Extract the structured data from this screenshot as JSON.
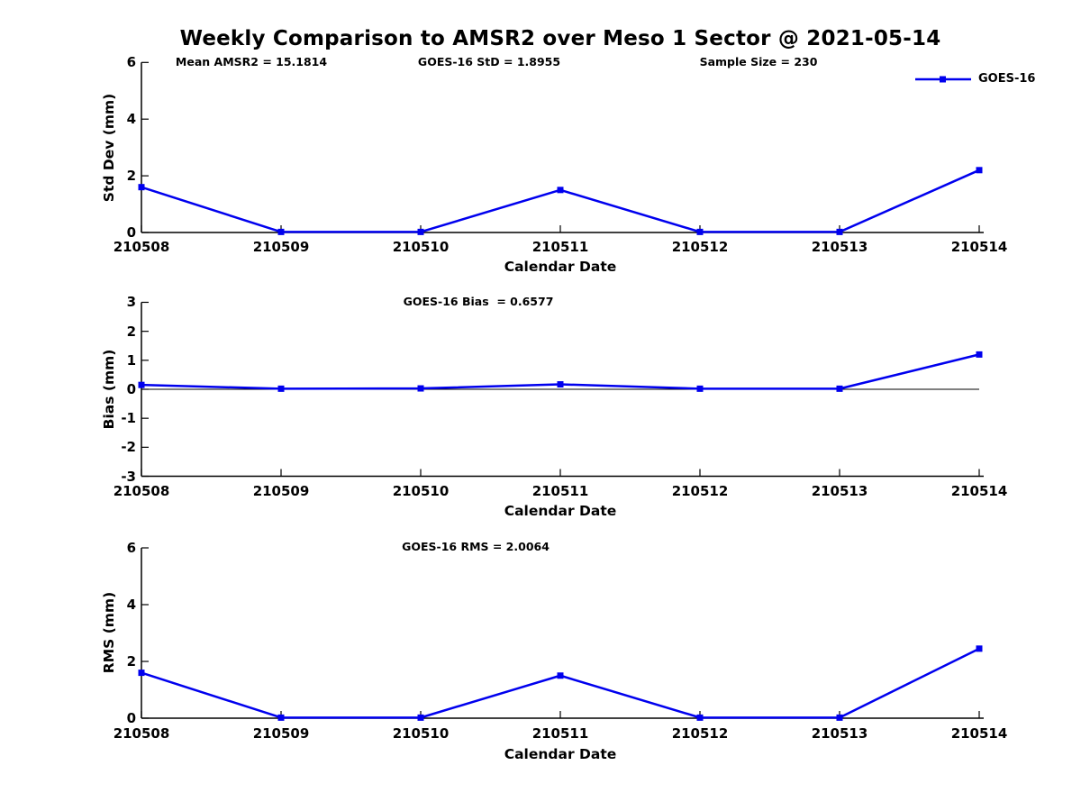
{
  "title": "Weekly Comparison to AMSR2 over Meso 1 Sector @ 2021-05-14",
  "legend": {
    "label": "GOES-16"
  },
  "colors": {
    "series": "#0000EE",
    "axis": "#000000",
    "text": "#000000",
    "background": "#ffffff"
  },
  "chart_data": [
    {
      "type": "line",
      "title": "Weekly Comparison to AMSR2 over Meso 1 Sector @ 2021-05-14",
      "annotations": [
        "Mean AMSR2 = 15.1814",
        "GOES-16 StD = 1.8955",
        "Sample Size = 230"
      ],
      "categories": [
        "210508",
        "210509",
        "210510",
        "210511",
        "210512",
        "210513",
        "210514"
      ],
      "series": [
        {
          "name": "GOES-16",
          "values": [
            1.6,
            0.02,
            0.02,
            1.5,
            0.02,
            0.02,
            2.2
          ]
        }
      ],
      "xlabel": "Calendar Date",
      "ylabel": "Std Dev (mm)",
      "ylim": [
        0,
        6
      ],
      "yticks": [
        0,
        2,
        4,
        6
      ],
      "grid": false,
      "zero_line": false,
      "legend_position": "top-right",
      "marker": "square"
    },
    {
      "type": "line",
      "annotations": [
        "GOES-16 Bias  = 0.6577"
      ],
      "categories": [
        "210508",
        "210509",
        "210510",
        "210511",
        "210512",
        "210513",
        "210514"
      ],
      "series": [
        {
          "name": "GOES-16",
          "values": [
            0.15,
            0.02,
            0.03,
            0.17,
            0.02,
            0.02,
            1.2
          ]
        }
      ],
      "xlabel": "Calendar Date",
      "ylabel": "Bias (mm)",
      "ylim": [
        -3,
        3
      ],
      "yticks": [
        -3,
        -2,
        -1,
        0,
        1,
        2,
        3
      ],
      "grid": false,
      "zero_line": true,
      "legend_position": "none",
      "marker": "square"
    },
    {
      "type": "line",
      "annotations": [
        "GOES-16 RMS = 2.0064"
      ],
      "categories": [
        "210508",
        "210509",
        "210510",
        "210511",
        "210512",
        "210513",
        "210514"
      ],
      "series": [
        {
          "name": "GOES-16",
          "values": [
            1.6,
            0.02,
            0.02,
            1.5,
            0.02,
            0.02,
            2.45
          ]
        }
      ],
      "xlabel": "Calendar Date",
      "ylabel": "RMS (mm)",
      "ylim": [
        0,
        6
      ],
      "yticks": [
        0,
        2,
        4,
        6
      ],
      "grid": false,
      "zero_line": false,
      "legend_position": "none",
      "marker": "square"
    }
  ]
}
